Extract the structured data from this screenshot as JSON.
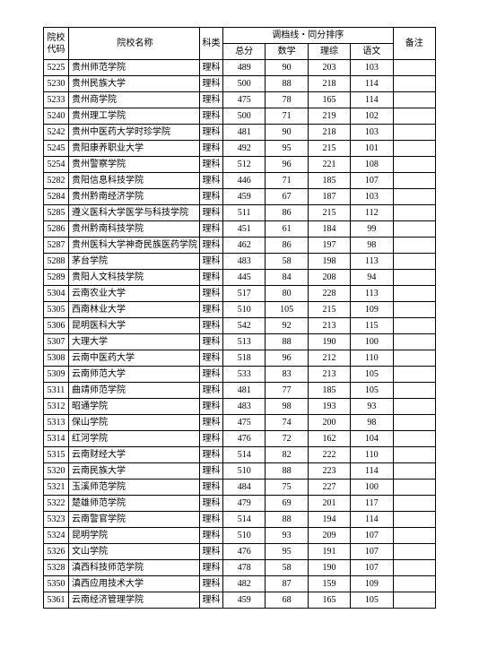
{
  "headers": {
    "code": "院校代码",
    "name": "院校名称",
    "subject": "科类",
    "group_header": "调档线・同分排序",
    "total": "总分",
    "math": "数学",
    "sci": "理综",
    "chinese": "语文",
    "remark": "备注"
  },
  "rows": [
    {
      "code": "5225",
      "name": "贵州师范学院",
      "subject": "理科",
      "total": "489",
      "math": "90",
      "sci": "203",
      "chinese": "103",
      "remark": ""
    },
    {
      "code": "5230",
      "name": "贵州民族大学",
      "subject": "理科",
      "total": "500",
      "math": "88",
      "sci": "218",
      "chinese": "114",
      "remark": ""
    },
    {
      "code": "5233",
      "name": "贵州商学院",
      "subject": "理科",
      "total": "475",
      "math": "78",
      "sci": "165",
      "chinese": "114",
      "remark": ""
    },
    {
      "code": "5240",
      "name": "贵州理工学院",
      "subject": "理科",
      "total": "500",
      "math": "71",
      "sci": "219",
      "chinese": "102",
      "remark": ""
    },
    {
      "code": "5242",
      "name": "贵州中医药大学时珍学院",
      "subject": "理科",
      "total": "481",
      "math": "90",
      "sci": "218",
      "chinese": "103",
      "remark": ""
    },
    {
      "code": "5245",
      "name": "贵阳康养职业大学",
      "subject": "理科",
      "total": "492",
      "math": "95",
      "sci": "215",
      "chinese": "101",
      "remark": ""
    },
    {
      "code": "5254",
      "name": "贵州警察学院",
      "subject": "理科",
      "total": "512",
      "math": "96",
      "sci": "221",
      "chinese": "108",
      "remark": ""
    },
    {
      "code": "5282",
      "name": "贵阳信息科技学院",
      "subject": "理科",
      "total": "446",
      "math": "71",
      "sci": "185",
      "chinese": "107",
      "remark": ""
    },
    {
      "code": "5284",
      "name": "贵州黔南经济学院",
      "subject": "理科",
      "total": "459",
      "math": "67",
      "sci": "187",
      "chinese": "103",
      "remark": ""
    },
    {
      "code": "5285",
      "name": "遵义医科大学医学与科技学院",
      "subject": "理科",
      "total": "511",
      "math": "86",
      "sci": "215",
      "chinese": "112",
      "remark": ""
    },
    {
      "code": "5286",
      "name": "贵州黔南科技学院",
      "subject": "理科",
      "total": "451",
      "math": "61",
      "sci": "184",
      "chinese": "99",
      "remark": ""
    },
    {
      "code": "5287",
      "name": "贵州医科大学神奇民族医药学院",
      "subject": "理科",
      "total": "462",
      "math": "86",
      "sci": "197",
      "chinese": "98",
      "remark": ""
    },
    {
      "code": "5288",
      "name": "茅台学院",
      "subject": "理科",
      "total": "483",
      "math": "58",
      "sci": "198",
      "chinese": "113",
      "remark": ""
    },
    {
      "code": "5289",
      "name": "贵阳人文科技学院",
      "subject": "理科",
      "total": "445",
      "math": "84",
      "sci": "208",
      "chinese": "94",
      "remark": ""
    },
    {
      "code": "5304",
      "name": "云南农业大学",
      "subject": "理科",
      "total": "517",
      "math": "80",
      "sci": "228",
      "chinese": "113",
      "remark": ""
    },
    {
      "code": "5305",
      "name": "西南林业大学",
      "subject": "理科",
      "total": "510",
      "math": "105",
      "sci": "215",
      "chinese": "109",
      "remark": ""
    },
    {
      "code": "5306",
      "name": "昆明医科大学",
      "subject": "理科",
      "total": "542",
      "math": "92",
      "sci": "213",
      "chinese": "115",
      "remark": ""
    },
    {
      "code": "5307",
      "name": "大理大学",
      "subject": "理科",
      "total": "513",
      "math": "88",
      "sci": "190",
      "chinese": "100",
      "remark": ""
    },
    {
      "code": "5308",
      "name": "云南中医药大学",
      "subject": "理科",
      "total": "518",
      "math": "96",
      "sci": "212",
      "chinese": "110",
      "remark": ""
    },
    {
      "code": "5309",
      "name": "云南师范大学",
      "subject": "理科",
      "total": "533",
      "math": "83",
      "sci": "213",
      "chinese": "105",
      "remark": ""
    },
    {
      "code": "5311",
      "name": "曲靖师范学院",
      "subject": "理科",
      "total": "481",
      "math": "77",
      "sci": "185",
      "chinese": "105",
      "remark": ""
    },
    {
      "code": "5312",
      "name": "昭通学院",
      "subject": "理科",
      "total": "483",
      "math": "98",
      "sci": "193",
      "chinese": "93",
      "remark": ""
    },
    {
      "code": "5313",
      "name": "保山学院",
      "subject": "理科",
      "total": "475",
      "math": "74",
      "sci": "200",
      "chinese": "98",
      "remark": ""
    },
    {
      "code": "5314",
      "name": "红河学院",
      "subject": "理科",
      "total": "476",
      "math": "72",
      "sci": "162",
      "chinese": "104",
      "remark": ""
    },
    {
      "code": "5315",
      "name": "云南财经大学",
      "subject": "理科",
      "total": "514",
      "math": "82",
      "sci": "222",
      "chinese": "110",
      "remark": ""
    },
    {
      "code": "5320",
      "name": "云南民族大学",
      "subject": "理科",
      "total": "510",
      "math": "88",
      "sci": "223",
      "chinese": "114",
      "remark": ""
    },
    {
      "code": "5321",
      "name": "玉溪师范学院",
      "subject": "理科",
      "total": "484",
      "math": "75",
      "sci": "227",
      "chinese": "100",
      "remark": ""
    },
    {
      "code": "5322",
      "name": "楚雄师范学院",
      "subject": "理科",
      "total": "479",
      "math": "69",
      "sci": "201",
      "chinese": "117",
      "remark": ""
    },
    {
      "code": "5323",
      "name": "云南警官学院",
      "subject": "理科",
      "total": "514",
      "math": "88",
      "sci": "194",
      "chinese": "114",
      "remark": ""
    },
    {
      "code": "5324",
      "name": "昆明学院",
      "subject": "理科",
      "total": "510",
      "math": "93",
      "sci": "209",
      "chinese": "107",
      "remark": ""
    },
    {
      "code": "5326",
      "name": "文山学院",
      "subject": "理科",
      "total": "476",
      "math": "95",
      "sci": "191",
      "chinese": "107",
      "remark": ""
    },
    {
      "code": "5328",
      "name": "滇西科技师范学院",
      "subject": "理科",
      "total": "478",
      "math": "58",
      "sci": "190",
      "chinese": "107",
      "remark": ""
    },
    {
      "code": "5350",
      "name": "滇西应用技术大学",
      "subject": "理科",
      "total": "482",
      "math": "87",
      "sci": "159",
      "chinese": "109",
      "remark": ""
    },
    {
      "code": "5361",
      "name": "云南经济管理学院",
      "subject": "理科",
      "total": "459",
      "math": "68",
      "sci": "165",
      "chinese": "105",
      "remark": ""
    }
  ]
}
